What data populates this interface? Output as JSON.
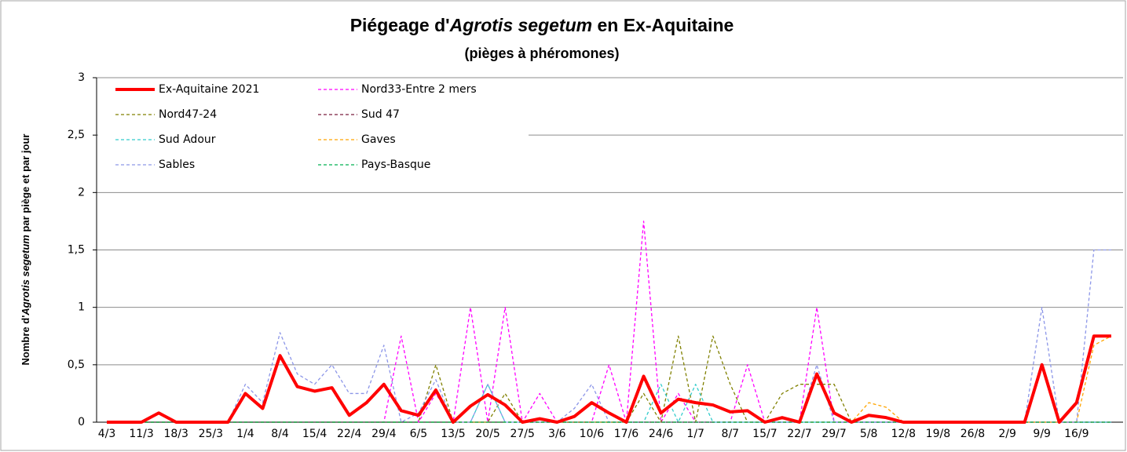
{
  "chart_data": {
    "type": "line",
    "title_parts": [
      "Piégeage d'",
      "Agrotis segetum",
      " en Ex-Aquitaine"
    ],
    "subtitle": "(pièges à phéromones)",
    "ylabel_parts": [
      "Nombre d'",
      "Agrotis segetum",
      " par piège et par jour"
    ],
    "categories": [
      "4/3",
      null,
      "11/3",
      null,
      "18/3",
      null,
      "25/3",
      null,
      "1/4",
      null,
      "8/4",
      null,
      "15/4",
      null,
      "22/4",
      null,
      "29/4",
      null,
      "6/5",
      null,
      "13/5",
      null,
      "20/5",
      null,
      "27/5",
      null,
      "3/6",
      null,
      "10/6",
      null,
      "17/6",
      null,
      "24/6",
      null,
      "1/7",
      null,
      "8/7",
      null,
      "15/7",
      null,
      "22/7",
      null,
      "29/7",
      null,
      "5/8",
      null,
      "12/8",
      null,
      "19/8",
      null,
      "26/8",
      null,
      "2/9",
      null,
      "9/9",
      null,
      "16/9",
      null,
      null
    ],
    "ylim": [
      0,
      3
    ],
    "yticks": [
      0,
      {
        "value": 0.5,
        "label": "0,5"
      },
      1,
      {
        "value": 1.5,
        "label": "1,5"
      },
      2,
      {
        "value": 2.5,
        "label": "2,5"
      },
      3
    ],
    "grid": true,
    "legend": "upper left",
    "series": [
      {
        "name": "Ex-Aquitaine 2021",
        "color": "#ff0000",
        "style": "solid",
        "values": [
          0,
          0,
          0,
          0.08,
          0,
          0,
          0,
          0,
          0.25,
          0.12,
          0.58,
          0.31,
          0.27,
          0.3,
          0.06,
          0.17,
          0.33,
          0.1,
          0.06,
          0.28,
          0,
          0.14,
          0.24,
          0.15,
          0,
          0.03,
          0,
          0.05,
          0.17,
          0.08,
          0,
          0.4,
          0.08,
          0.2,
          0.17,
          0.15,
          0.09,
          0.1,
          0,
          0.04,
          0,
          0.42,
          0.08,
          0,
          0.06,
          0.04,
          0,
          0,
          0,
          0,
          0,
          0,
          0,
          0,
          0.5,
          0,
          0.17,
          0.75,
          0.75
        ]
      },
      {
        "name": "Nord33-Entre 2 mers",
        "color": "#ff00ff",
        "style": "dashed",
        "values": [
          0,
          0,
          0,
          0,
          0,
          0,
          0,
          0,
          0,
          0,
          0,
          0,
          0,
          0,
          0,
          0,
          0,
          0.75,
          0,
          0.25,
          0,
          1,
          0,
          1,
          0,
          0.25,
          0,
          0,
          0,
          0.5,
          0,
          1.75,
          0,
          0.25,
          0,
          0,
          0,
          0.5,
          0,
          0,
          0,
          1,
          0,
          0,
          0,
          0,
          0,
          0,
          0,
          0,
          0,
          0,
          0,
          0,
          0,
          0,
          0,
          0,
          0
        ]
      },
      {
        "name": "Nord47-24",
        "color": "#808000",
        "style": "dashed",
        "values": [
          0,
          0,
          0,
          0,
          0,
          0,
          0,
          0,
          0,
          0,
          0,
          0,
          0,
          0,
          0,
          0,
          0,
          0,
          0,
          0.5,
          0,
          0,
          0,
          0.25,
          0,
          0,
          0,
          0,
          0,
          0,
          0,
          0.25,
          0,
          0.75,
          0,
          0.75,
          0.33,
          0,
          0,
          0.25,
          0.33,
          0.33,
          0.33,
          0,
          0,
          0,
          0,
          0,
          0,
          0,
          0,
          0,
          0,
          0,
          0,
          0,
          0,
          0,
          0
        ]
      },
      {
        "name": "Sud 47",
        "color": "#7b1d3d",
        "style": "dashed",
        "values": [
          0,
          0,
          0,
          0,
          0,
          0,
          0,
          0,
          0,
          0,
          0,
          0,
          0,
          0,
          0,
          0,
          0,
          0,
          0,
          0,
          0,
          0,
          0,
          0,
          0,
          0,
          0,
          0,
          0,
          0,
          0,
          0,
          0,
          0,
          0,
          0,
          0,
          0,
          0,
          0,
          0,
          0,
          0,
          0,
          0,
          0,
          0,
          0,
          0,
          0,
          0,
          0,
          0,
          0,
          0,
          0,
          0,
          0,
          0
        ]
      },
      {
        "name": "Sud Adour",
        "color": "#33cccc",
        "style": "dashed",
        "values": [
          0,
          0,
          0,
          0,
          0,
          0,
          0,
          0,
          0,
          0,
          0,
          0,
          0,
          0,
          0,
          0,
          0,
          0,
          0,
          0,
          0,
          0,
          0.33,
          0,
          0,
          0,
          0,
          0,
          0,
          0,
          0,
          0,
          0.33,
          0,
          0.33,
          0,
          0,
          0,
          0,
          0,
          0,
          0,
          0,
          0,
          0,
          0,
          0,
          0,
          0,
          0,
          0,
          0,
          0,
          0,
          0,
          0,
          0,
          0,
          0
        ]
      },
      {
        "name": "Gaves",
        "color": "#ffa500",
        "style": "dashed",
        "values": [
          0,
          0,
          0,
          0,
          0,
          0,
          0,
          0,
          0,
          0,
          0,
          0,
          0,
          0,
          0,
          0,
          0,
          0,
          0,
          0,
          0,
          0,
          0,
          0,
          0,
          0,
          0,
          0,
          0,
          0,
          0,
          0,
          0,
          0,
          0,
          0,
          0,
          0,
          0,
          0,
          0,
          0,
          0,
          0,
          0.17,
          0.13,
          0,
          0,
          0,
          0,
          0,
          0,
          0,
          0,
          0,
          0,
          0,
          0.67,
          0.75
        ]
      },
      {
        "name": "Sables",
        "color": "#8c96e8",
        "style": "dashed",
        "values": [
          0,
          0,
          0,
          0.08,
          0,
          0,
          0,
          0,
          0.33,
          0.17,
          0.78,
          0.42,
          0.33,
          0.5,
          0.25,
          0.25,
          0.67,
          0,
          0.08,
          0.37,
          0,
          0,
          0.33,
          0,
          0,
          0,
          0,
          0.12,
          0.33,
          0,
          0,
          0,
          0,
          0,
          0,
          0,
          0,
          0,
          0,
          0,
          0,
          0.5,
          0,
          0,
          0,
          0,
          0,
          0,
          0,
          0,
          0,
          0,
          0,
          0,
          1,
          0,
          0,
          1.5,
          1.5
        ]
      },
      {
        "name": "Pays-Basque",
        "color": "#00b050",
        "style": "dashed",
        "values": [
          0,
          0,
          0,
          0,
          0,
          0,
          0,
          0,
          0,
          0,
          0,
          0,
          0,
          0,
          0,
          0,
          0,
          0,
          0,
          0,
          0,
          0,
          0,
          0,
          0,
          0,
          0,
          0,
          0,
          0,
          0,
          0,
          0,
          0,
          0,
          0,
          0,
          0,
          0,
          0,
          0,
          0,
          0,
          0,
          0,
          0,
          0,
          0,
          0,
          0,
          0,
          0,
          0,
          0,
          0,
          0,
          0,
          0,
          0
        ]
      }
    ]
  }
}
